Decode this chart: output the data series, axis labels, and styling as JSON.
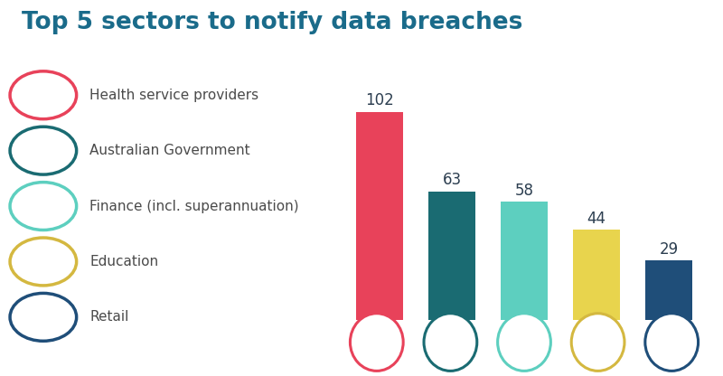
{
  "title": "Top 5 sectors to notify data breaches",
  "title_color": "#1a6b8a",
  "title_fontsize": 19,
  "background_color": "#ffffff",
  "legend_labels": [
    "Health service providers",
    "Australian Government",
    "Finance (incl. superannuation)",
    "Education",
    "Retail"
  ],
  "values": [
    102,
    63,
    58,
    44,
    29
  ],
  "bar_colors": [
    "#e8425a",
    "#1a6b72",
    "#5dcfbf",
    "#e8d44d",
    "#1f4e79"
  ],
  "circle_edge_colors": [
    "#e8425a",
    "#1a6b72",
    "#5dcfbf",
    "#d4b840",
    "#1f4e79"
  ],
  "icon_colors": [
    "#e8425a",
    "#1a6b72",
    "#5dcfbf",
    "#d4b840",
    "#1f4e79"
  ],
  "icon_bg_color": "#ffffff",
  "value_label_color": "#2c3e50",
  "value_fontsize": 12,
  "ylim": [
    0,
    120
  ],
  "bar_width": 0.65,
  "legend_text_color": "#4a4a4a",
  "legend_fontsize": 11,
  "icon_fontsize": 16,
  "icon_symbols": [
    "♥",
    "●",
    "●",
    "●",
    "●"
  ]
}
